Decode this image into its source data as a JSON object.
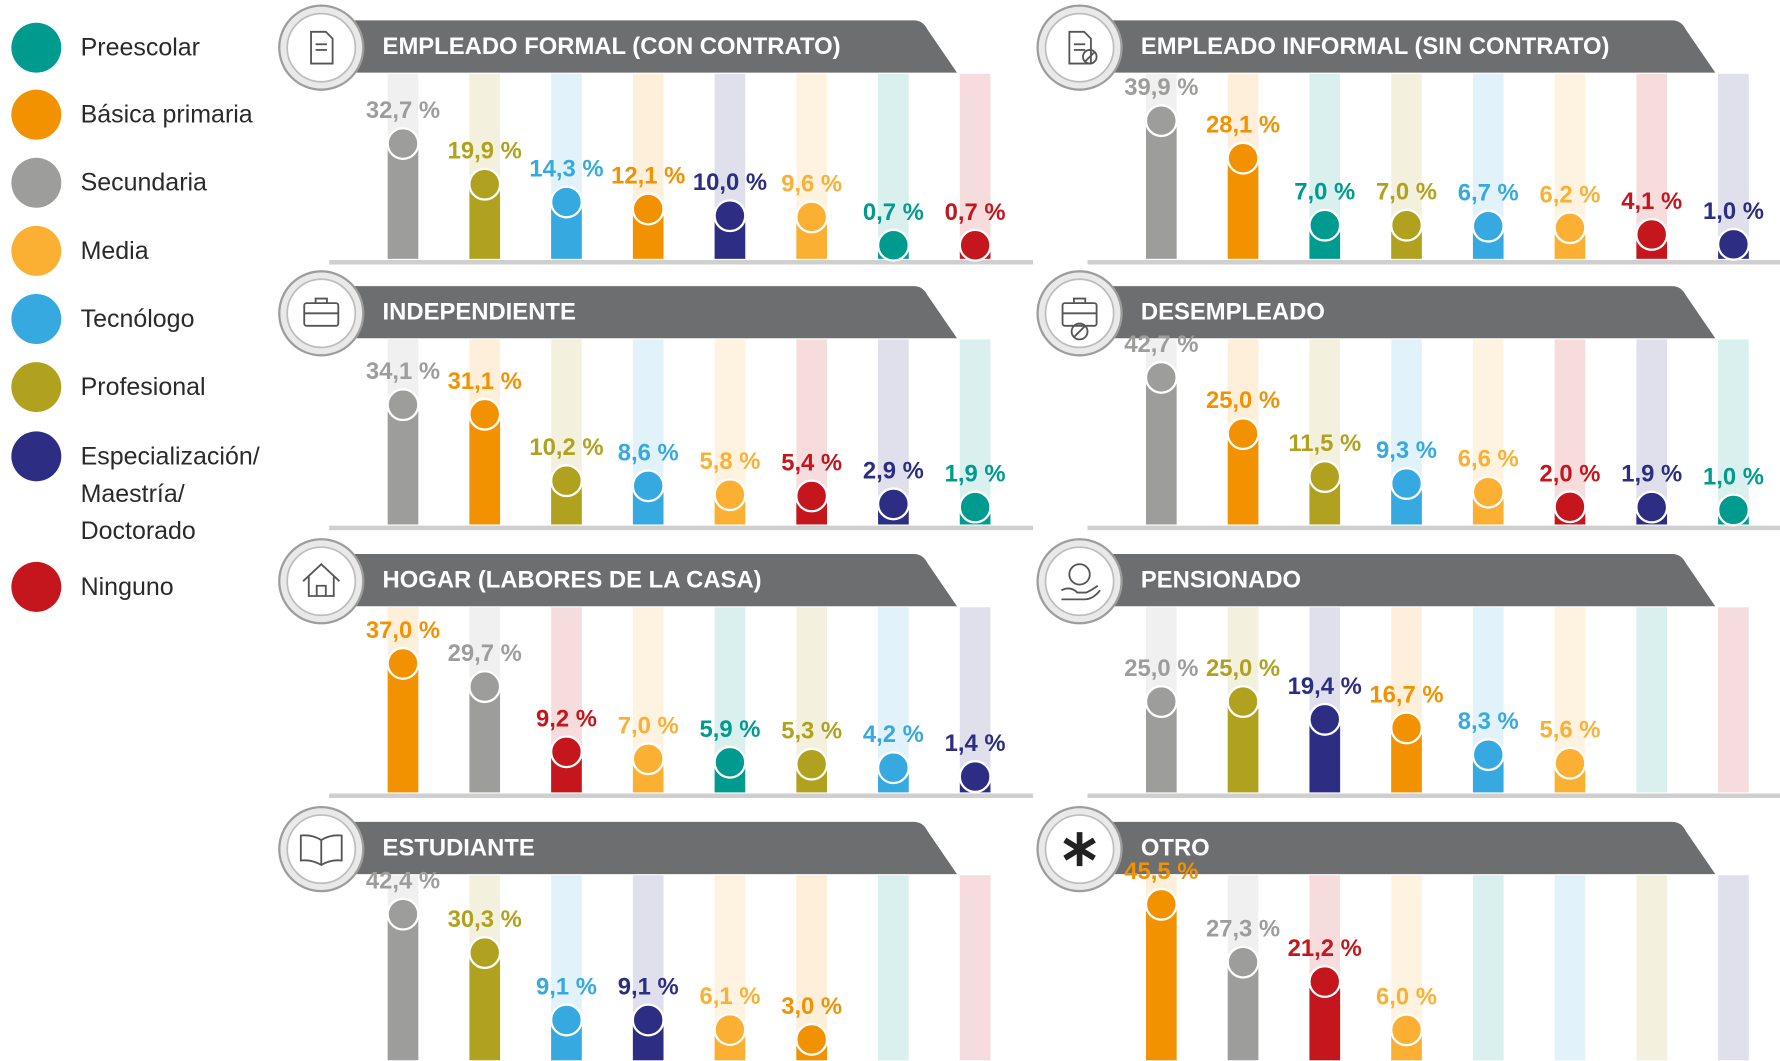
{
  "legend": {
    "items": [
      {
        "name": "Preescolar",
        "color": "#009b8f"
      },
      {
        "name": "Básica primaria",
        "color": "#f39200"
      },
      {
        "name": "Secundaria",
        "color": "#9d9d9c"
      },
      {
        "name": "Media",
        "color": "#fbb034"
      },
      {
        "name": "Tecnólogo",
        "color": "#36a9e1"
      },
      {
        "name": "Profesional",
        "color": "#b0a21e"
      },
      {
        "name": "Especialización/ Maestría/ Doctorado",
        "color": "#2d2e83"
      },
      {
        "name": "Ninguno",
        "color": "#c4161c"
      }
    ]
  },
  "chart_data": [
    {
      "type": "bar",
      "title": "EMPLEADO FORMAL (CON CONTRATO)",
      "ylim": [
        0,
        50
      ],
      "colors": [
        "#9d9d9c",
        "#b0a21e",
        "#36a9e1",
        "#f39200",
        "#2d2e83",
        "#fbb034",
        "#009b8f",
        "#c4161c"
      ],
      "values": [
        32.7,
        19.9,
        14.3,
        12.1,
        10.0,
        9.6,
        0.7,
        0.7
      ],
      "value_labels": [
        "32,7 %",
        "19,9 %",
        "14,3 %",
        "12,1 %",
        "10,0 %",
        "9,6 %",
        "0,7 %",
        "0,7 %"
      ]
    },
    {
      "type": "bar",
      "title": "EMPLEADO INFORMAL (SIN CONTRATO)",
      "ylim": [
        0,
        50
      ],
      "colors": [
        "#9d9d9c",
        "#f39200",
        "#009b8f",
        "#b0a21e",
        "#36a9e1",
        "#fbb034",
        "#c4161c",
        "#2d2e83"
      ],
      "values": [
        39.9,
        28.1,
        7.0,
        7.0,
        6.7,
        6.2,
        4.1,
        1.0
      ],
      "value_labels": [
        "39,9 %",
        "28,1 %",
        "7,0 %",
        "7,0 %",
        "6,7 %",
        "6,2 %",
        "4,1 %",
        "1,0 %"
      ]
    },
    {
      "type": "bar",
      "title": "INDEPENDIENTE",
      "ylim": [
        0,
        50
      ],
      "colors": [
        "#9d9d9c",
        "#f39200",
        "#b0a21e",
        "#36a9e1",
        "#fbb034",
        "#c4161c",
        "#2d2e83",
        "#009b8f"
      ],
      "values": [
        34.1,
        31.1,
        10.2,
        8.6,
        5.8,
        5.4,
        2.9,
        1.9
      ],
      "value_labels": [
        "34,1 %",
        "31,1 %",
        "10,2 %",
        "8,6 %",
        "5,8 %",
        "5,4 %",
        "2,9 %",
        "1,9 %"
      ]
    },
    {
      "type": "bar",
      "title": "DESEMPLEADO",
      "ylim": [
        0,
        50
      ],
      "colors": [
        "#9d9d9c",
        "#f39200",
        "#b0a21e",
        "#36a9e1",
        "#fbb034",
        "#c4161c",
        "#2d2e83",
        "#009b8f"
      ],
      "values": [
        42.7,
        25.0,
        11.5,
        9.3,
        6.6,
        2.0,
        1.9,
        1.0
      ],
      "value_labels": [
        "42,7 %",
        "25,0 %",
        "11,5 %",
        "9,3 %",
        "6,6 %",
        "2,0 %",
        "1,9 %",
        "1,0 %"
      ]
    },
    {
      "type": "bar",
      "title": "HOGAR (LABORES DE LA CASA)",
      "ylim": [
        0,
        50
      ],
      "colors": [
        "#f39200",
        "#9d9d9c",
        "#c4161c",
        "#fbb034",
        "#009b8f",
        "#b0a21e",
        "#36a9e1",
        "#2d2e83"
      ],
      "values": [
        37.0,
        29.7,
        9.2,
        7.0,
        5.9,
        5.3,
        4.2,
        1.4
      ],
      "value_labels": [
        "37,0 %",
        "29,7 %",
        "9,2 %",
        "7,0 %",
        "5,9 %",
        "5,3 %",
        "4,2 %",
        "1,4 %"
      ]
    },
    {
      "type": "bar",
      "title": "PENSIONADO",
      "ylim": [
        0,
        50
      ],
      "colors": [
        "#9d9d9c",
        "#b0a21e",
        "#2d2e83",
        "#f39200",
        "#36a9e1",
        "#fbb034",
        "#009b8f",
        "#c4161c"
      ],
      "values": [
        25.0,
        25.0,
        19.4,
        16.7,
        8.3,
        5.6,
        null,
        null
      ],
      "value_labels": [
        "25,0 %",
        "25,0 %",
        "19,4 %",
        "16,7 %",
        "8,3 %",
        "5,6 %",
        null,
        null
      ]
    },
    {
      "type": "bar",
      "title": "ESTUDIANTE",
      "ylim": [
        0,
        50
      ],
      "colors": [
        "#9d9d9c",
        "#b0a21e",
        "#36a9e1",
        "#2d2e83",
        "#fbb034",
        "#f39200",
        "#009b8f",
        "#c4161c"
      ],
      "values": [
        42.4,
        30.3,
        9.1,
        9.1,
        6.1,
        3.0,
        null,
        null
      ],
      "value_labels": [
        "42,4 %",
        "30,3 %",
        "9,1 %",
        "9,1 %",
        "6,1 %",
        "3,0 %",
        null,
        null
      ]
    },
    {
      "type": "bar",
      "title": "OTRO",
      "ylim": [
        0,
        50
      ],
      "colors": [
        "#f39200",
        "#9d9d9c",
        "#c4161c",
        "#fbb034",
        "#009b8f",
        "#36a9e1",
        "#b0a21e",
        "#2d2e83"
      ],
      "values": [
        45.5,
        27.3,
        21.2,
        6.0,
        null,
        null,
        null,
        null
      ],
      "value_labels": [
        "45,5 %",
        "27,3 %",
        "21,2 %",
        "6,0 %",
        null,
        null,
        null,
        null
      ]
    }
  ]
}
